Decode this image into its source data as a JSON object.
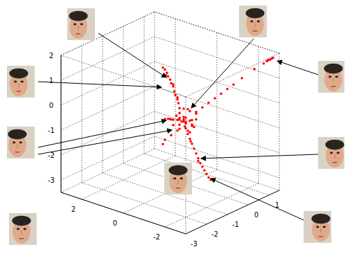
{
  "chart_data": {
    "type": "scatter3d",
    "color": "#ff0000",
    "marker": "circle",
    "grid": true,
    "xlim": [
      -3,
      3
    ],
    "ylim": [
      -3,
      1.5
    ],
    "zlim": [
      -3.5,
      2
    ],
    "xticks": [
      -2,
      0,
      2
    ],
    "yticks": [
      -3,
      -2,
      -1,
      0,
      1
    ],
    "zticks": [
      -3,
      -2,
      -1,
      0,
      1,
      2
    ],
    "x": [
      0,
      0.2,
      -0.2,
      0.1,
      -0.1,
      0.3,
      -0.3,
      0.1,
      0,
      0.2,
      -0.2,
      0.4,
      -0.4,
      0.1,
      0,
      0.3,
      -0.1,
      0.2,
      -0.3,
      0.05,
      0.15,
      -0.15,
      0.25,
      -0.05,
      0.35,
      -0.25,
      0.1,
      0,
      0.4,
      0.5,
      0.6,
      0.7,
      0.8,
      0.9,
      1.0,
      1.1,
      1.2,
      1.3,
      1.4,
      1.5,
      0.95,
      0.65,
      1.25,
      -0.3,
      -0.5,
      -0.7,
      -0.9,
      -1.1,
      -1.3,
      -1.5,
      -1.8,
      -2.2,
      -2.5,
      -2.6,
      -2.7,
      -2.8,
      -2.75,
      -2.65,
      -0.05,
      -0.1,
      -0.15,
      -0.2,
      -0.25,
      -0.3,
      -0.35,
      -0.4,
      -0.45,
      -0.5,
      -0.55,
      -0.6,
      -0.32,
      -0.12,
      0.5,
      0.7,
      0.9,
      1.05,
      1.2,
      0.8,
      0.3,
      0.5,
      0.7,
      0.8
    ],
    "y": [
      0,
      0.1,
      0.1,
      -0.2,
      -0.1,
      0,
      0.2,
      0.3,
      -0.3,
      -0.1,
      -0.2,
      0.1,
      0,
      0.2,
      0.1,
      -0.3,
      0.4,
      0.2,
      -0.1,
      -0.05,
      0.05,
      0.15,
      -0.2,
      0.25,
      0.15,
      -0.3,
      0,
      0.2,
      0.1,
      0.15,
      0.2,
      0.2,
      0.25,
      0.3,
      0.3,
      0.35,
      0.35,
      0.4,
      0.4,
      0.4,
      0.35,
      0.25,
      0.3,
      0.2,
      0.3,
      0.4,
      0.5,
      0.6,
      0.7,
      0.8,
      0.9,
      1.1,
      1.25,
      1.3,
      1.35,
      1.4,
      1.38,
      1.32,
      0.05,
      0.1,
      0.15,
      0.2,
      0.25,
      0.3,
      0.35,
      0.4,
      0.45,
      0.5,
      0.55,
      0.6,
      0.28,
      0.12,
      0.1,
      0.1,
      0.15,
      0.2,
      0.2,
      0.12,
      -0.1,
      -0.2,
      -0.3,
      -0.3
    ],
    "z": [
      -1,
      -0.9,
      -1.1,
      -0.8,
      -1.2,
      -1,
      -0.9,
      -1.1,
      -1,
      -1.3,
      -0.7,
      -0.8,
      -1.1,
      -0.6,
      -1.4,
      -1.1,
      -0.8,
      -1.2,
      -1.3,
      -0.9,
      -1.05,
      -0.95,
      -0.75,
      -1.25,
      -1.15,
      -1,
      -0.5,
      -0.65,
      -0.6,
      -0.45,
      -0.35,
      -0.2,
      -0.1,
      0.05,
      0.15,
      0.25,
      0.35,
      0.45,
      0.55,
      0.6,
      0.1,
      -0.3,
      0.4,
      -0.6,
      -0.4,
      -0.2,
      0,
      0.2,
      0.4,
      0.6,
      0.9,
      1.3,
      1.55,
      1.65,
      1.72,
      1.8,
      1.76,
      1.7,
      -1.5,
      -1.7,
      -1.9,
      -2.1,
      -2.3,
      -2.5,
      -2.7,
      -2.85,
      -3,
      -3.15,
      -3.3,
      -3.4,
      -2.6,
      -1.8,
      -1.1,
      -1.15,
      -1.2,
      -1.25,
      -1.3,
      -1.18,
      -1.4,
      -1.6,
      -1.8,
      -2
    ]
  }
}
